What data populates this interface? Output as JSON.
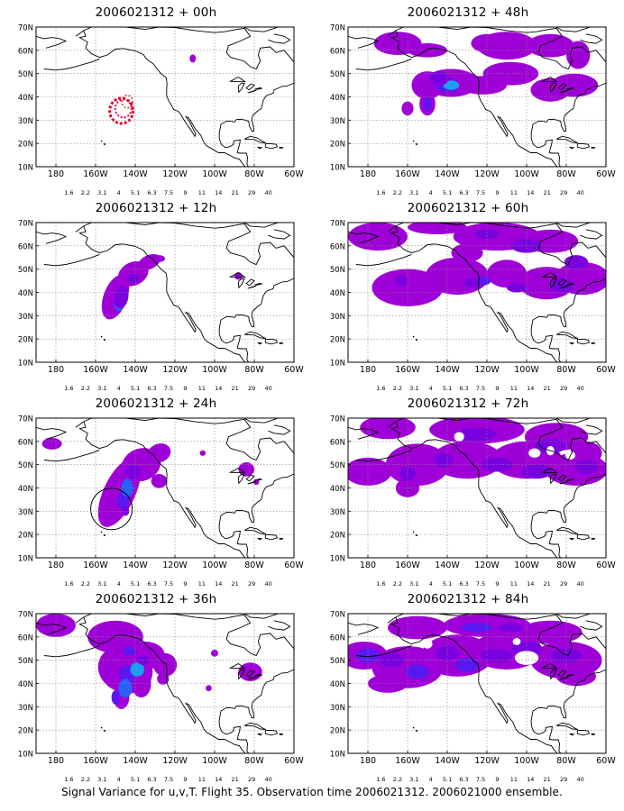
{
  "caption": "Signal Variance for u,v,T. Flight 35. Observation time 2006021312. 2006021000 ensemble.",
  "lat_labels": [
    "70N",
    "60N",
    "50N",
    "40N",
    "30N",
    "20N",
    "10N"
  ],
  "lon_labels": [
    "180",
    "160W",
    "140W",
    "120W",
    "100W",
    "80W",
    "60W"
  ],
  "colorbar": {
    "labels": [
      "1.6",
      "2.2",
      "3.1",
      "4",
      "5.1",
      "6.3",
      "7.5",
      "9",
      "11",
      "14",
      "21",
      "29",
      "40"
    ],
    "colors": [
      "#a000d8",
      "#7a00e0",
      "#5a18f0",
      "#2860f8",
      "#1aa0f0",
      "#10c8c8",
      "#10d890",
      "#30d030",
      "#98d818",
      "#d8d800",
      "#f0a800",
      "#f06000",
      "#f00000",
      "#e80060"
    ]
  },
  "panels": [
    {
      "title": "2006021312 + 00h"
    },
    {
      "title": "2006021312 + 48h"
    },
    {
      "title": "2006021312 + 12h"
    },
    {
      "title": "2006021312 + 60h"
    },
    {
      "title": "2006021312 + 24h"
    },
    {
      "title": "2006021312 + 72h"
    },
    {
      "title": "2006021312 + 36h"
    },
    {
      "title": "2006021312 + 84h"
    }
  ]
}
